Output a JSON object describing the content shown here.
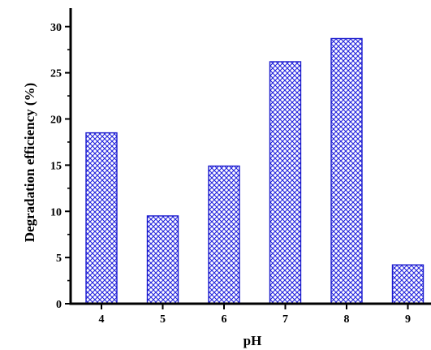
{
  "chart_data": {
    "type": "bar",
    "categories": [
      "4",
      "5",
      "6",
      "7",
      "8",
      "9"
    ],
    "values": [
      18.5,
      9.5,
      14.9,
      26.2,
      28.7,
      4.2
    ],
    "xlabel": "pH",
    "ylabel": "Degradation efficiency (%)",
    "ylim": [
      0,
      32
    ],
    "yticks": [
      "0",
      "5",
      "10",
      "15",
      "20",
      "25",
      "30"
    ],
    "grid": false,
    "bar_fill": "#4a4ee6",
    "bar_stroke": "#1a1acc",
    "axis_color": "#000000"
  }
}
